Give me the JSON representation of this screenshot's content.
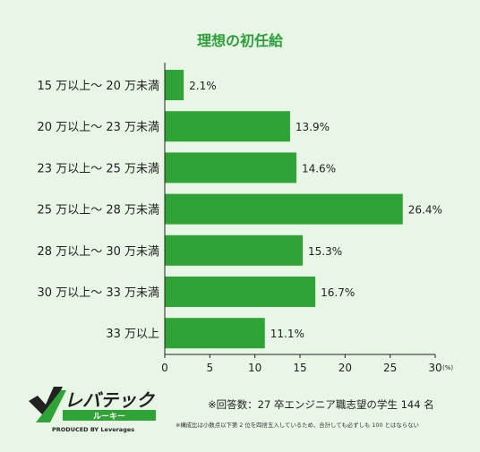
{
  "title": "理想の初任給",
  "chart_data": {
    "type": "bar",
    "orientation": "horizontal",
    "categories": [
      "15 万以上〜 20 万未満",
      "20 万以上〜 23 万未満",
      "23 万以上〜 25 万未満",
      "25 万以上〜 28 万未満",
      "28 万以上〜 30 万未満",
      "30 万以上〜 33 万未満",
      "33 万以上"
    ],
    "values": [
      2.1,
      13.9,
      14.6,
      26.4,
      15.3,
      16.7,
      11.1
    ],
    "value_labels": [
      "2.1%",
      "13.9%",
      "14.6%",
      "26.4%",
      "15.3%",
      "16.7%",
      "11.1%"
    ],
    "xlim": [
      0,
      30
    ],
    "xticks": [
      "0",
      "5",
      "10",
      "15",
      "20",
      "25",
      "30"
    ],
    "x_unit": "(%)",
    "bar_color": "#2fa336",
    "grid": false
  },
  "logo": {
    "name": "レバテック",
    "sub": "ルーキー",
    "byline": "PRODUCED BY Leverages",
    "brand_color": "#2fa336"
  },
  "notes": {
    "main": "※回答数：27 卒エンジニア職志望の学生 144 名",
    "sub": "※構成比は小数点以下第 2 位を四捨五入しているため、合計しても必ずしも 100 とはならない"
  }
}
